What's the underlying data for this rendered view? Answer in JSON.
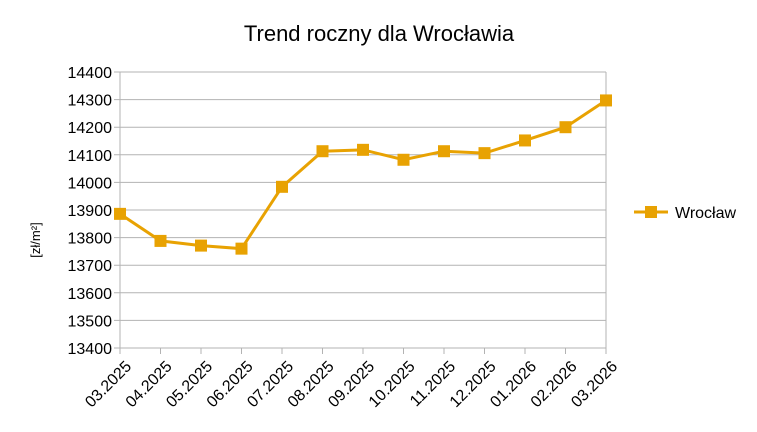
{
  "chart_data": {
    "type": "line",
    "title": "Trend roczny dla Wrocławia",
    "xlabel": "",
    "ylabel": "[zł/m²]",
    "categories": [
      "03.2025",
      "04.2025",
      "05.2025",
      "06.2025",
      "07.2025",
      "08.2025",
      "09.2025",
      "10.2025",
      "11.2025",
      "12.2025",
      "01.2026",
      "02.2026",
      "03.2026"
    ],
    "ylim": [
      13400,
      14400
    ],
    "yticks": [
      "13400",
      "13500",
      "13600",
      "13700",
      "13800",
      "13900",
      "14000",
      "14100",
      "14200",
      "14300",
      "14400"
    ],
    "grid": true,
    "legend": "right",
    "series": [
      {
        "name": "Wrocław",
        "color": "#E8A202",
        "marker": "square",
        "values": [
          13886,
          13788,
          13771,
          13760,
          13984,
          14113,
          14118,
          14082,
          14113,
          14106,
          14152,
          14200,
          14297
        ]
      }
    ]
  }
}
